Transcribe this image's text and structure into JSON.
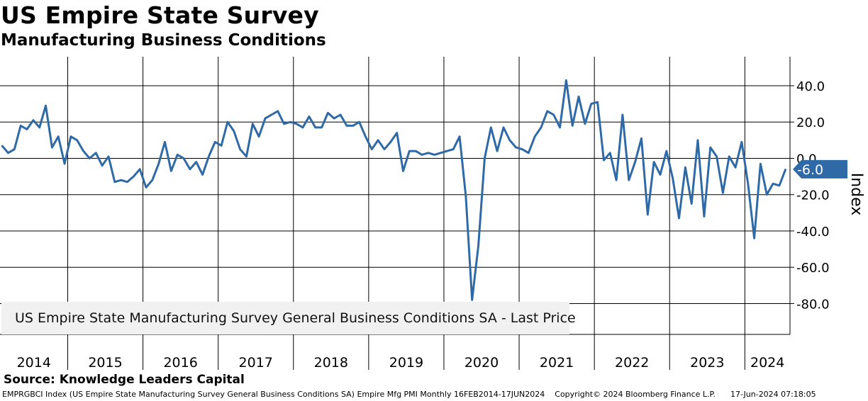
{
  "header": {
    "title": "US Empire State Survey",
    "subtitle": "Manufacturing Business Conditions"
  },
  "source": "Source: Knowledge Leaders Capital",
  "footer": {
    "ticker": "EMPRGBCI Index (US Empire State Manufacturing Survey General Business Conditions SA) Empire Mfg PMI  Monthly 16FEB2014-17JUN2024",
    "copyright": "Copyright© 2024 Bloomberg Finance L.P.",
    "timestamp": "17-Jun-2024 07:18:05"
  },
  "legend": {
    "label": "US Empire State Manufacturing Survey General Business Conditions SA - Last Price"
  },
  "colors": {
    "series": "#2f6aa7",
    "callout": "#2f6aa7",
    "grid": "#000000"
  },
  "chart_data": {
    "type": "line",
    "title": "US Empire State Survey",
    "subtitle": "Manufacturing Business Conditions",
    "xlabel": "",
    "ylabel": "Index",
    "ylim": [
      -97,
      56
    ],
    "xlim": [
      2014.1,
      2024.6
    ],
    "yticks": [
      40,
      20,
      0,
      -20,
      -40,
      -60,
      -80
    ],
    "ytick_labels": [
      "40.0",
      "20.0",
      "0.0",
      "-20.0",
      "-40.0",
      "-60.0",
      "-80.0"
    ],
    "year_labels": [
      "2014",
      "2015",
      "2016",
      "2017",
      "2018",
      "2019",
      "2020",
      "2021",
      "2022",
      "2023",
      "2024"
    ],
    "last_value": -6.0,
    "last_value_label": "-6.0",
    "legend_position": "bottom-left",
    "series": [
      {
        "name": "US Empire State Manufacturing Survey General Business Conditions SA - Last Price",
        "start": "2014-02",
        "frequency": "monthly",
        "values": [
          7,
          3,
          5,
          18,
          16,
          21,
          17,
          29,
          6,
          12,
          -3,
          12,
          10,
          4,
          0,
          3,
          -4,
          1,
          -13,
          -12,
          -13,
          -10,
          -6,
          -16,
          -12,
          -3,
          9,
          -7,
          2,
          0,
          -6,
          -2,
          -9,
          1,
          9,
          7,
          20,
          15,
          5,
          1,
          19,
          12,
          22,
          24,
          26,
          19,
          20,
          19,
          17,
          23,
          17,
          17,
          25,
          22,
          24,
          18,
          18,
          20,
          12,
          5,
          10,
          5,
          9,
          14,
          -7,
          4,
          4,
          2,
          3,
          2,
          3,
          4,
          5,
          12,
          -21,
          -78,
          -48,
          0,
          17,
          4,
          17,
          10,
          6,
          5,
          3,
          12,
          17,
          26,
          24,
          17,
          43,
          18,
          34,
          19,
          30,
          31,
          -1,
          3,
          -12,
          24,
          -12,
          -2,
          11,
          -31,
          -2,
          -9,
          4,
          -11,
          -33,
          -5,
          -25,
          10,
          -32,
          6,
          1,
          -19,
          1,
          -5,
          9,
          -14,
          -44,
          -3,
          -20,
          -14,
          -15,
          -6
        ]
      }
    ]
  }
}
